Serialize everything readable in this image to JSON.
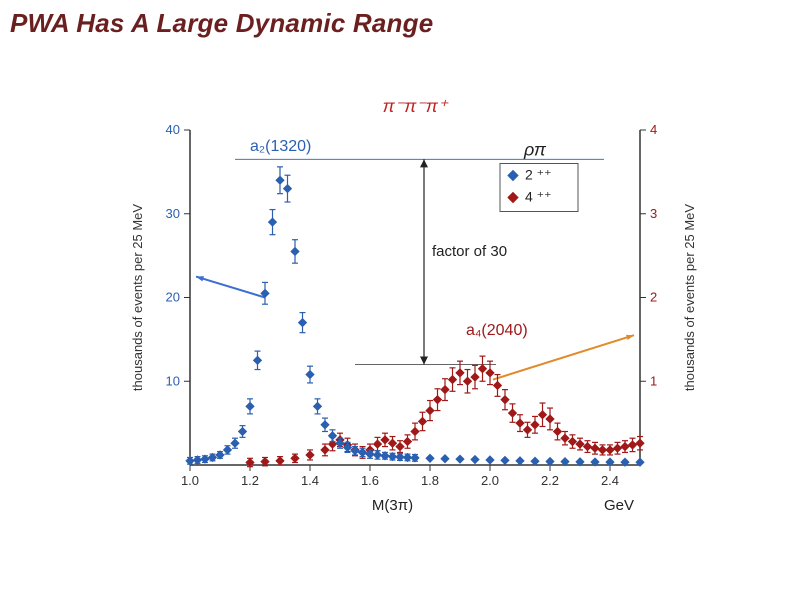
{
  "title": "PWA Has A Large Dynamic Range",
  "chart": {
    "type": "scatter-errorbar-dual-axis",
    "top_label": "π⁻π⁻π⁺",
    "top_label_color": "#c02020",
    "top_label_fontsize": 18,
    "rho_pi": "ρπ",
    "rho_pi_fontsize": 18,
    "x_label": "M(3π)",
    "x_unit": "GeV",
    "x_label_fontsize": 15,
    "left_axis": {
      "label": "thousands of events per 25 MeV",
      "label_fontsize": 13,
      "color": "#2b5fb0",
      "ylim": [
        0,
        40
      ],
      "ticks": [
        10,
        20,
        30,
        40
      ]
    },
    "right_axis": {
      "label": "thousands of events per 25 MeV",
      "label_fontsize": 13,
      "color": "#a01818",
      "ylim": [
        0,
        4
      ],
      "ticks": [
        1,
        2,
        3,
        4
      ]
    },
    "x_axis": {
      "xlim": [
        1.0,
        2.5
      ],
      "ticks": [
        1.0,
        1.2,
        1.4,
        1.6,
        1.8,
        2.0,
        2.2,
        2.4
      ]
    },
    "legend": {
      "items": [
        {
          "label": "2 ⁺⁺",
          "color": "#2b5fb0",
          "marker": "diamond"
        },
        {
          "label": "4 ⁺⁺",
          "color": "#a01818",
          "marker": "diamond"
        }
      ],
      "fontsize": 14
    },
    "annotations": {
      "a2": {
        "text": "a₂(1320)",
        "color": "#2b5fb0",
        "fontsize": 16
      },
      "a4": {
        "text": "a₄(2040)",
        "color": "#a01818",
        "fontsize": 16
      },
      "factor": {
        "text": "factor of 30",
        "color": "#222",
        "fontsize": 15
      }
    },
    "background_color": "#ffffff",
    "marker_size": 5.5,
    "errorbar_width": 1.2,
    "series_blue": {
      "color": "#2b5fb0",
      "data": [
        {
          "x": 1.0,
          "y": 0.5,
          "ey": 0.4
        },
        {
          "x": 1.025,
          "y": 0.6,
          "ey": 0.4
        },
        {
          "x": 1.05,
          "y": 0.7,
          "ey": 0.4
        },
        {
          "x": 1.075,
          "y": 0.9,
          "ey": 0.4
        },
        {
          "x": 1.1,
          "y": 1.2,
          "ey": 0.4
        },
        {
          "x": 1.125,
          "y": 1.8,
          "ey": 0.5
        },
        {
          "x": 1.15,
          "y": 2.6,
          "ey": 0.6
        },
        {
          "x": 1.175,
          "y": 4.0,
          "ey": 0.7
        },
        {
          "x": 1.2,
          "y": 7.0,
          "ey": 0.9
        },
        {
          "x": 1.225,
          "y": 12.5,
          "ey": 1.1
        },
        {
          "x": 1.25,
          "y": 20.5,
          "ey": 1.3
        },
        {
          "x": 1.275,
          "y": 29.0,
          "ey": 1.5
        },
        {
          "x": 1.3,
          "y": 34.0,
          "ey": 1.6
        },
        {
          "x": 1.325,
          "y": 33.0,
          "ey": 1.6
        },
        {
          "x": 1.35,
          "y": 25.5,
          "ey": 1.4
        },
        {
          "x": 1.375,
          "y": 17.0,
          "ey": 1.2
        },
        {
          "x": 1.4,
          "y": 10.8,
          "ey": 1.0
        },
        {
          "x": 1.425,
          "y": 7.0,
          "ey": 0.9
        },
        {
          "x": 1.45,
          "y": 4.8,
          "ey": 0.8
        },
        {
          "x": 1.475,
          "y": 3.5,
          "ey": 0.7
        },
        {
          "x": 1.5,
          "y": 2.6,
          "ey": 0.6
        },
        {
          "x": 1.525,
          "y": 2.1,
          "ey": 0.6
        },
        {
          "x": 1.55,
          "y": 1.7,
          "ey": 0.5
        },
        {
          "x": 1.575,
          "y": 1.5,
          "ey": 0.5
        },
        {
          "x": 1.6,
          "y": 1.3,
          "ey": 0.5
        },
        {
          "x": 1.625,
          "y": 1.2,
          "ey": 0.5
        },
        {
          "x": 1.65,
          "y": 1.1,
          "ey": 0.4
        },
        {
          "x": 1.675,
          "y": 1.0,
          "ey": 0.4
        },
        {
          "x": 1.7,
          "y": 0.95,
          "ey": 0.4
        },
        {
          "x": 1.725,
          "y": 0.9,
          "ey": 0.4
        },
        {
          "x": 1.75,
          "y": 0.85,
          "ey": 0.4
        },
        {
          "x": 1.8,
          "y": 0.8,
          "ey": 0
        },
        {
          "x": 1.85,
          "y": 0.75,
          "ey": 0
        },
        {
          "x": 1.9,
          "y": 0.7,
          "ey": 0
        },
        {
          "x": 1.95,
          "y": 0.65,
          "ey": 0
        },
        {
          "x": 2.0,
          "y": 0.6,
          "ey": 0
        },
        {
          "x": 2.05,
          "y": 0.55,
          "ey": 0
        },
        {
          "x": 2.1,
          "y": 0.5,
          "ey": 0
        },
        {
          "x": 2.15,
          "y": 0.45,
          "ey": 0
        },
        {
          "x": 2.2,
          "y": 0.42,
          "ey": 0
        },
        {
          "x": 2.25,
          "y": 0.4,
          "ey": 0
        },
        {
          "x": 2.3,
          "y": 0.38,
          "ey": 0
        },
        {
          "x": 2.35,
          "y": 0.36,
          "ey": 0
        },
        {
          "x": 2.4,
          "y": 0.35,
          "ey": 0
        },
        {
          "x": 2.45,
          "y": 0.34,
          "ey": 0
        },
        {
          "x": 2.5,
          "y": 0.33,
          "ey": 0
        }
      ]
    },
    "series_red": {
      "color": "#a01818",
      "data": [
        {
          "x": 1.2,
          "y": 0.03,
          "ey": 0.05
        },
        {
          "x": 1.25,
          "y": 0.04,
          "ey": 0.05
        },
        {
          "x": 1.3,
          "y": 0.05,
          "ey": 0.05
        },
        {
          "x": 1.35,
          "y": 0.08,
          "ey": 0.05
        },
        {
          "x": 1.4,
          "y": 0.12,
          "ey": 0.06
        },
        {
          "x": 1.45,
          "y": 0.18,
          "ey": 0.07
        },
        {
          "x": 1.475,
          "y": 0.25,
          "ey": 0.08
        },
        {
          "x": 1.5,
          "y": 0.3,
          "ey": 0.08
        },
        {
          "x": 1.525,
          "y": 0.24,
          "ey": 0.08
        },
        {
          "x": 1.55,
          "y": 0.18,
          "ey": 0.07
        },
        {
          "x": 1.575,
          "y": 0.15,
          "ey": 0.07
        },
        {
          "x": 1.6,
          "y": 0.18,
          "ey": 0.07
        },
        {
          "x": 1.625,
          "y": 0.25,
          "ey": 0.08
        },
        {
          "x": 1.65,
          "y": 0.3,
          "ey": 0.08
        },
        {
          "x": 1.675,
          "y": 0.26,
          "ey": 0.08
        },
        {
          "x": 1.7,
          "y": 0.22,
          "ey": 0.07
        },
        {
          "x": 1.725,
          "y": 0.28,
          "ey": 0.08
        },
        {
          "x": 1.75,
          "y": 0.4,
          "ey": 0.1
        },
        {
          "x": 1.775,
          "y": 0.52,
          "ey": 0.11
        },
        {
          "x": 1.8,
          "y": 0.65,
          "ey": 0.12
        },
        {
          "x": 1.825,
          "y": 0.78,
          "ey": 0.13
        },
        {
          "x": 1.85,
          "y": 0.9,
          "ey": 0.13
        },
        {
          "x": 1.875,
          "y": 1.02,
          "ey": 0.14
        },
        {
          "x": 1.9,
          "y": 1.1,
          "ey": 0.14
        },
        {
          "x": 1.925,
          "y": 1.0,
          "ey": 0.14
        },
        {
          "x": 1.95,
          "y": 1.05,
          "ey": 0.14
        },
        {
          "x": 1.975,
          "y": 1.15,
          "ey": 0.15
        },
        {
          "x": 2.0,
          "y": 1.1,
          "ey": 0.14
        },
        {
          "x": 2.025,
          "y": 0.95,
          "ey": 0.13
        },
        {
          "x": 2.05,
          "y": 0.78,
          "ey": 0.12
        },
        {
          "x": 2.075,
          "y": 0.62,
          "ey": 0.11
        },
        {
          "x": 2.1,
          "y": 0.5,
          "ey": 0.1
        },
        {
          "x": 2.125,
          "y": 0.42,
          "ey": 0.09
        },
        {
          "x": 2.15,
          "y": 0.48,
          "ey": 0.1
        },
        {
          "x": 2.175,
          "y": 0.6,
          "ey": 0.14
        },
        {
          "x": 2.2,
          "y": 0.55,
          "ey": 0.13
        },
        {
          "x": 2.225,
          "y": 0.4,
          "ey": 0.1
        },
        {
          "x": 2.25,
          "y": 0.32,
          "ey": 0.08
        },
        {
          "x": 2.275,
          "y": 0.28,
          "ey": 0.08
        },
        {
          "x": 2.3,
          "y": 0.25,
          "ey": 0.07
        },
        {
          "x": 2.325,
          "y": 0.22,
          "ey": 0.07
        },
        {
          "x": 2.35,
          "y": 0.2,
          "ey": 0.07
        },
        {
          "x": 2.375,
          "y": 0.18,
          "ey": 0.06
        },
        {
          "x": 2.4,
          "y": 0.18,
          "ey": 0.06
        },
        {
          "x": 2.425,
          "y": 0.2,
          "ey": 0.07
        },
        {
          "x": 2.45,
          "y": 0.22,
          "ey": 0.07
        },
        {
          "x": 2.475,
          "y": 0.24,
          "ey": 0.08
        },
        {
          "x": 2.5,
          "y": 0.26,
          "ey": 0.08
        }
      ]
    },
    "hline_blue_y": 36.5,
    "hline_red_y_right": 1.2,
    "indicator_arrows": {
      "blue_to_left_axis": {
        "x1": 1.25,
        "y1": 20,
        "x2": 1.02,
        "y2": 22.5,
        "color": "#3a6fd1"
      },
      "red_to_right_axis": {
        "x1": 2.01,
        "y1_right": 1.02,
        "x2": 2.48,
        "y2_right": 1.55,
        "color": "#e08a2a"
      }
    }
  }
}
